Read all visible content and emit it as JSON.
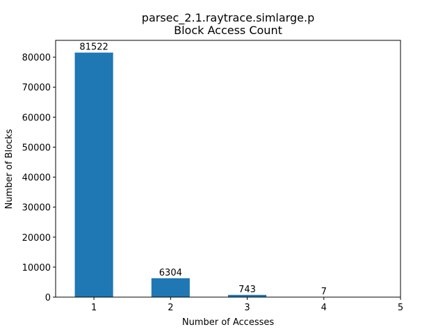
{
  "chart_data": {
    "type": "bar",
    "title": "parsec_2.1.raytrace.simlarge.p",
    "subtitle": "Block Access Count",
    "xlabel": "Number of Accesses",
    "ylabel": "Number of Blocks",
    "categories": [
      1,
      2,
      3,
      4
    ],
    "values": [
      81522,
      6304,
      743,
      7
    ],
    "value_labels": [
      "81522",
      "6304",
      "743",
      "7"
    ],
    "xlim": [
      0.5,
      5
    ],
    "ylim": [
      0,
      85600
    ],
    "x_ticks": [
      "1",
      "2",
      "3",
      "4",
      "5"
    ],
    "x_tick_values": [
      1,
      2,
      3,
      4,
      5
    ],
    "y_ticks": [
      "0",
      "10000",
      "20000",
      "30000",
      "40000",
      "50000",
      "60000",
      "70000",
      "80000"
    ],
    "y_tick_values": [
      0,
      10000,
      20000,
      30000,
      40000,
      50000,
      60000,
      70000,
      80000
    ],
    "bar_width": 0.5,
    "grid": false,
    "bar_color": "#1f77b4"
  }
}
